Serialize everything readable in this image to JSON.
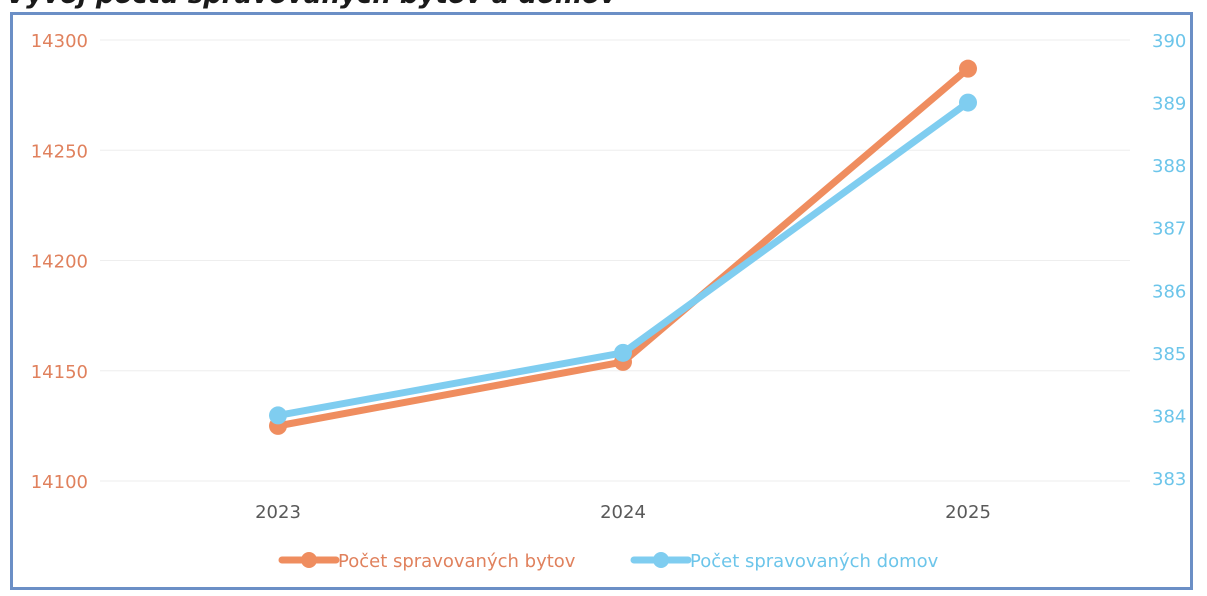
{
  "header": {
    "cut_title": "Vývoj počtu spravovaných bytov a domov"
  },
  "chart_data": {
    "type": "line",
    "categories": [
      "2023",
      "2024",
      "2025"
    ],
    "series": [
      {
        "name": "Počet spravovaných bytov",
        "axis": "left",
        "color": "#ef8d5f",
        "values": [
          14125,
          14154,
          14287
        ]
      },
      {
        "name": "Počet spravovaných domov",
        "axis": "right",
        "color": "#7fcdf0",
        "values": [
          384,
          385,
          389
        ]
      }
    ],
    "y_left": {
      "min": 14100,
      "max": 14300,
      "ticks": [
        "14100",
        "14150",
        "14200",
        "14250",
        "14300"
      ]
    },
    "y_right": {
      "min": 383,
      "max": 390,
      "ticks": [
        "383",
        "384",
        "385",
        "386",
        "387",
        "388",
        "389",
        "390"
      ]
    },
    "title": "",
    "grid": true,
    "legend": "bottom",
    "colors": {
      "left_axis": "#e0815d",
      "right_axis": "#6cc5ea",
      "grid": "#eeeeee",
      "frame": "#6b8fc6"
    }
  }
}
